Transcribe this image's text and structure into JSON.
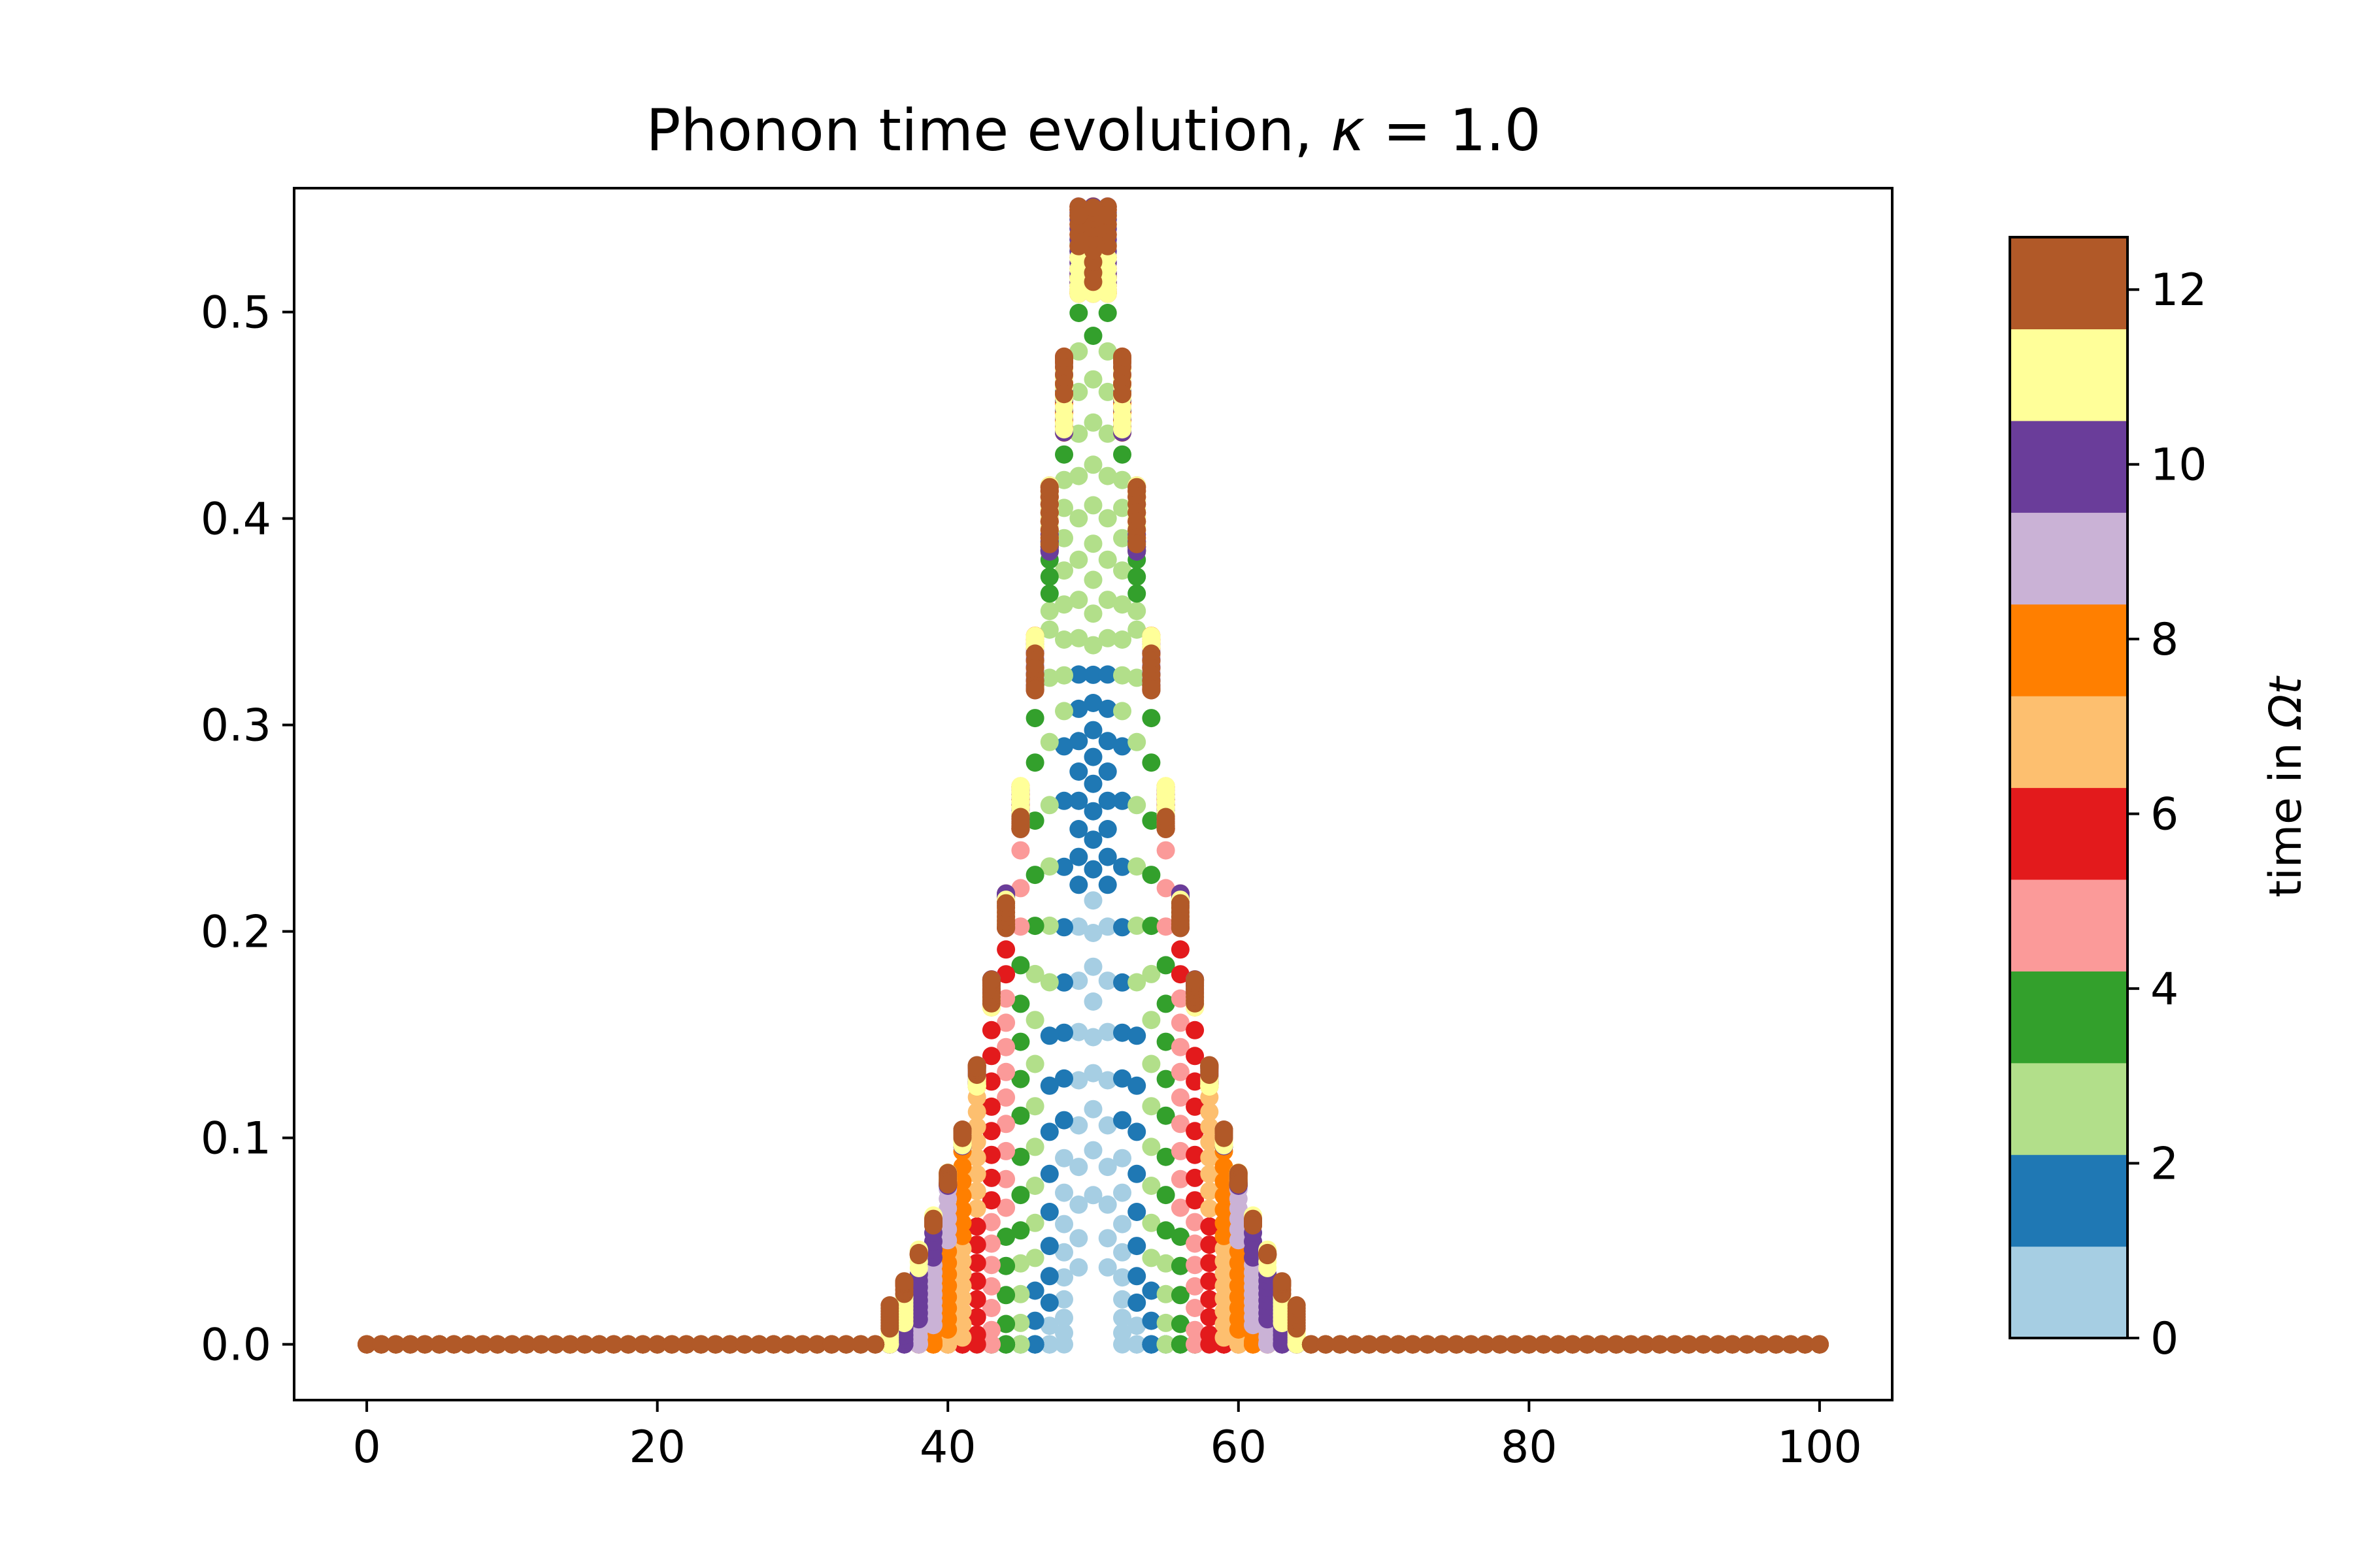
{
  "chart_data": {
    "type": "scatter",
    "title": "Phonon time evolution, κ = 1.0",
    "title_plain": "Phonon time evolution, ",
    "title_symbol": "κ",
    "title_rest": " = 1.0",
    "xlabel": "",
    "ylabel": "",
    "xlim": [
      -5,
      105
    ],
    "ylim": [
      -0.027,
      0.56
    ],
    "x_ticks": [
      0,
      20,
      40,
      60,
      80,
      100
    ],
    "x_tick_labels": [
      "0",
      "20",
      "40",
      "60",
      "80",
      "100"
    ],
    "y_ticks": [
      0.0,
      0.1,
      0.2,
      0.3,
      0.4,
      0.5
    ],
    "y_tick_labels": [
      "0.0",
      "0.1",
      "0.2",
      "0.3",
      "0.4",
      "0.5"
    ],
    "grid": false,
    "sites": {
      "start": 0,
      "end": 100,
      "step": 1
    },
    "center_site": 50,
    "profile_note": "time-evolving wavepacket over sites 0-100, centered at 50",
    "profile": {
      "offsets": [
        0,
        1,
        2,
        3,
        4,
        5,
        6,
        7,
        8,
        9,
        10,
        11,
        12,
        13,
        14,
        15
      ],
      "final_envelope": [
        0.53,
        0.53,
        0.46,
        0.4,
        0.33,
        0.26,
        0.21,
        0.17,
        0.13,
        0.1,
        0.08,
        0.06,
        0.045,
        0.03,
        0.02,
        0.0
      ]
    },
    "time_samples": 100,
    "time_range": [
      0,
      12.6
    ],
    "colormap": {
      "name": "Paired",
      "colors": [
        "#a6cee3",
        "#1f78b4",
        "#b2df8a",
        "#33a02c",
        "#fb9a99",
        "#e31a1c",
        "#fdbf6f",
        "#ff7f00",
        "#cab2d6",
        "#6a3d9a",
        "#ffff99",
        "#b15928"
      ]
    },
    "colorbar": {
      "label": "time in Ωt",
      "label_plain": "time in ",
      "label_symbol": "Ωt",
      "range": [
        0,
        12.6
      ],
      "ticks": [
        0,
        2,
        4,
        6,
        8,
        10,
        12
      ],
      "tick_labels": [
        "0",
        "2",
        "4",
        "6",
        "8",
        "10",
        "12"
      ]
    }
  }
}
